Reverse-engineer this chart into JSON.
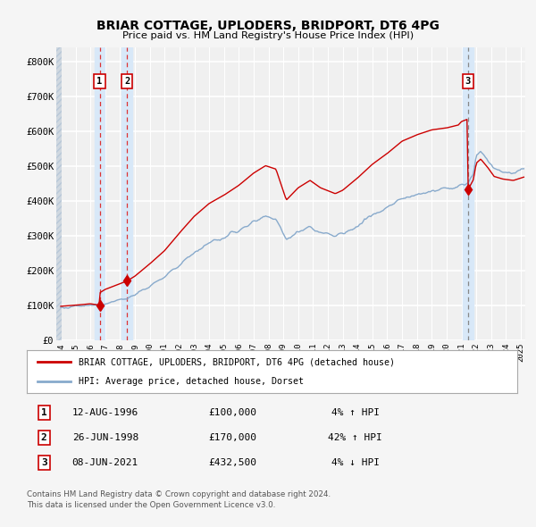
{
  "title": "BRIAR COTTAGE, UPLODERS, BRIDPORT, DT6 4PG",
  "subtitle": "Price paid vs. HM Land Registry's House Price Index (HPI)",
  "legend_red": "BRIAR COTTAGE, UPLODERS, BRIDPORT, DT6 4PG (detached house)",
  "legend_blue": "HPI: Average price, detached house, Dorset",
  "footer_line1": "Contains HM Land Registry data © Crown copyright and database right 2024.",
  "footer_line2": "This data is licensed under the Open Government Licence v3.0.",
  "transactions": [
    {
      "num": 1,
      "date": "12-AUG-1996",
      "price": 100000,
      "price_str": "£100,000",
      "hpi_str": "4% ↑ HPI",
      "year": 1996.62
    },
    {
      "num": 2,
      "date": "26-JUN-1998",
      "price": 170000,
      "price_str": "£170,000",
      "hpi_str": "42% ↑ HPI",
      "year": 1998.46
    },
    {
      "num": 3,
      "date": "08-JUN-2021",
      "price": 432500,
      "price_str": "£432,500",
      "hpi_str": "4% ↓ HPI",
      "year": 2021.44
    }
  ],
  "xmin": 1993.7,
  "xmax": 2025.3,
  "ymin": 0,
  "ymax": 840000,
  "yticks": [
    0,
    100000,
    200000,
    300000,
    400000,
    500000,
    600000,
    700000,
    800000
  ],
  "ytick_labels": [
    "£0",
    "£100K",
    "£200K",
    "£300K",
    "£400K",
    "£500K",
    "£600K",
    "£700K",
    "£800K"
  ],
  "fig_bg": "#f5f5f5",
  "plot_bg": "#f0f0f0",
  "grid_color": "#ffffff",
  "red_color": "#cc0000",
  "blue_color": "#88aacc",
  "dashed_color_red": "#dd3333",
  "dashed_color_gray": "#888888",
  "shade_color": "#d8e8f8",
  "hatch_fg": "#d0d8e0",
  "marker_color": "#cc0000",
  "box_edge": "#cc0000"
}
